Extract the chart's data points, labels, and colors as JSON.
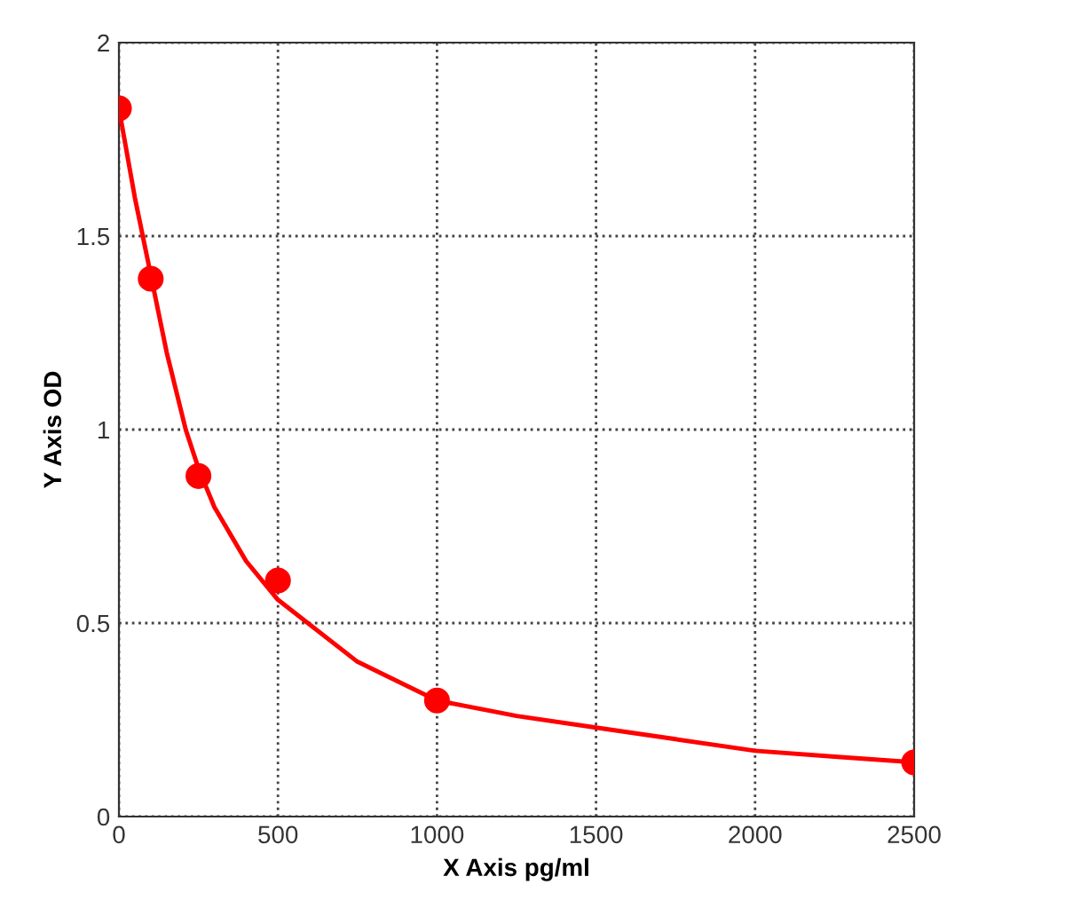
{
  "chart_data": {
    "type": "scatter",
    "xlabel": "X Axis pg/ml",
    "ylabel": "Y Axis OD",
    "xlim": [
      0,
      2500
    ],
    "ylim": [
      0,
      2
    ],
    "xticks": [
      0,
      500,
      1000,
      1500,
      2000,
      2500
    ],
    "yticks": [
      0,
      0.5,
      1,
      1.5,
      2
    ],
    "grid": true,
    "series": [
      {
        "type": "line",
        "color": "#ff0000",
        "x": [
          0,
          50,
          100,
          150,
          210,
          250,
          300,
          400,
          500,
          750,
          1000,
          1250,
          1500,
          1750,
          2000,
          2250,
          2500
        ],
        "values": [
          1.83,
          1.6,
          1.4,
          1.2,
          1.0,
          0.9,
          0.8,
          0.66,
          0.56,
          0.4,
          0.3,
          0.26,
          0.23,
          0.2,
          0.17,
          0.155,
          0.14
        ]
      },
      {
        "color": "#ff0000",
        "marker": "circle",
        "x": [
          0,
          100,
          250,
          500,
          1000,
          2500
        ],
        "values": [
          1.83,
          1.39,
          0.88,
          0.61,
          0.3,
          0.14
        ]
      }
    ]
  }
}
